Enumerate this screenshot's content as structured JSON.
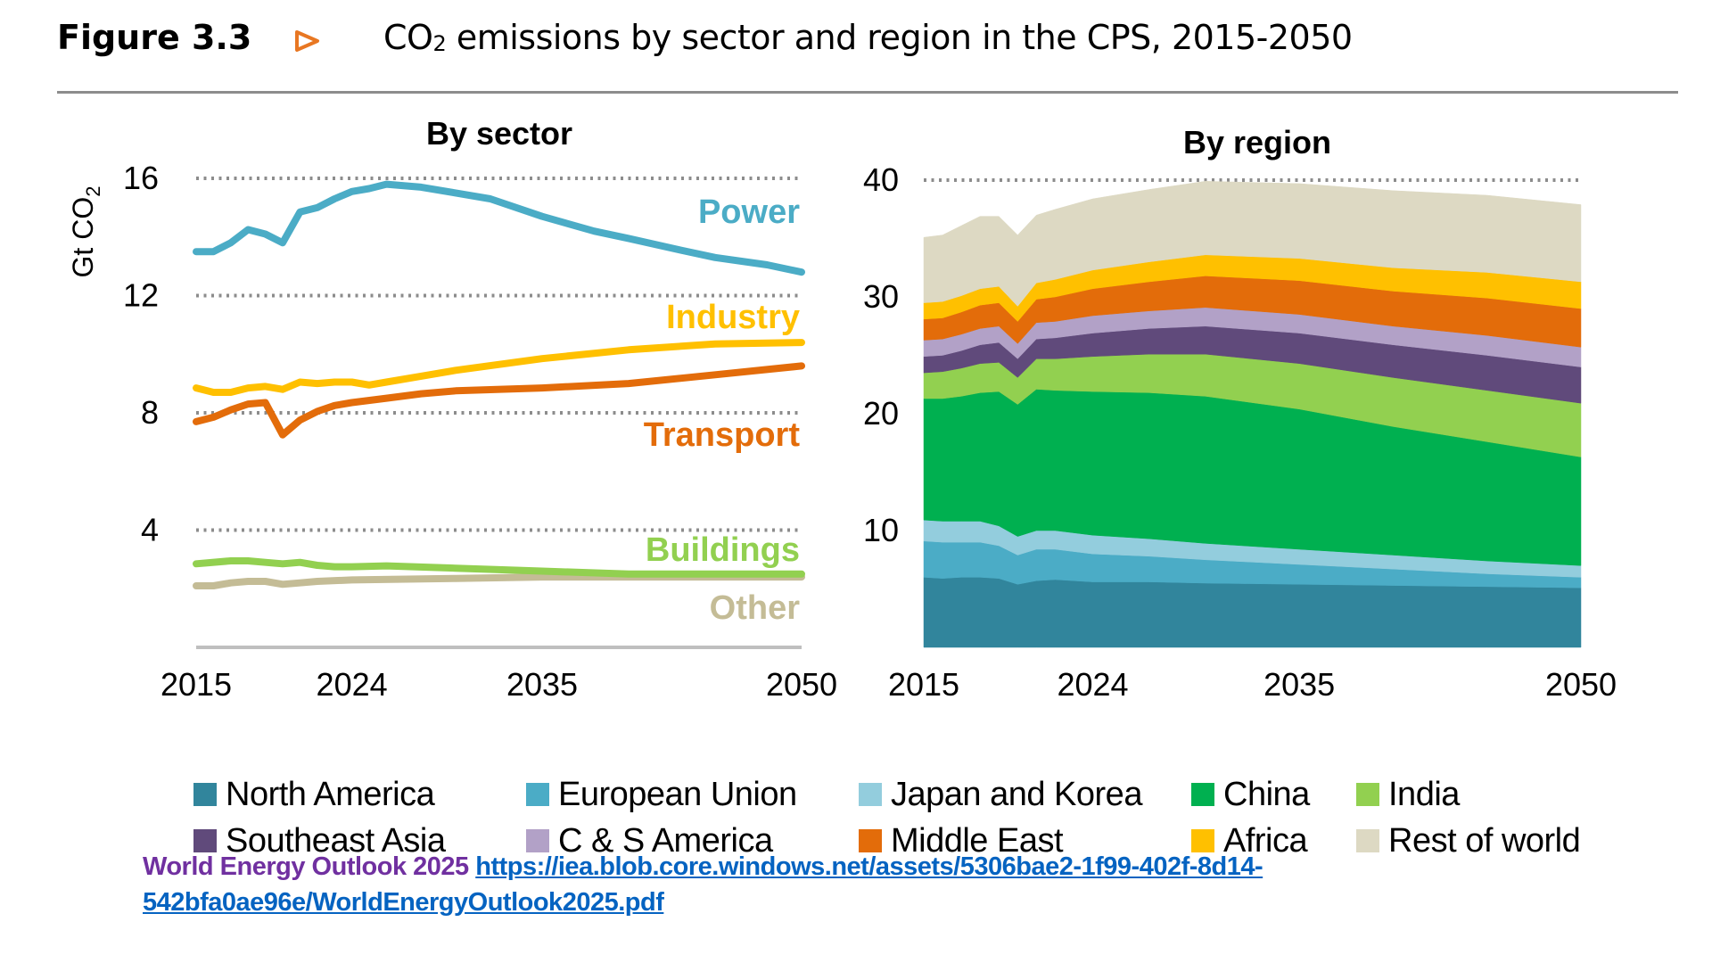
{
  "header": {
    "figure_number": "Figure 3.3",
    "arrow_icon": "right-triangle-icon",
    "title_prefix": "CO",
    "title_subscript": "2",
    "title_rest": " emissions by sector and region in the CPS, 2015-2050",
    "accent_color": "#e87722"
  },
  "footer": {
    "source_label": "World Energy Outlook 2025",
    "link_line1": "https://iea.blob.core.windows.net/assets/5306bae2-1f99-402f-8d14-",
    "link_line2": "542bfa0ae96e/WorldEnergyOutlook2025.pdf"
  },
  "chart_data": [
    {
      "type": "line",
      "title": "By sector",
      "ylabel": "Gt CO2",
      "xlabel": "",
      "xlim": [
        2015,
        2050
      ],
      "ylim": [
        0,
        16
      ],
      "yticks": [
        4,
        8,
        12,
        16
      ],
      "xticks": [
        2015,
        2024,
        2035,
        2050
      ],
      "grid": "horizontal-dotted",
      "legend": "inline-right",
      "series": [
        {
          "name": "Power",
          "color": "#4bacc6",
          "x": [
            2015,
            2016,
            2017,
            2018,
            2019,
            2020,
            2021,
            2022,
            2023,
            2024,
            2025,
            2026,
            2028,
            2030,
            2032,
            2035,
            2038,
            2040,
            2043,
            2045,
            2048,
            2050
          ],
          "y": [
            13.5,
            13.5,
            13.8,
            14.25,
            14.1,
            13.8,
            14.85,
            15.0,
            15.3,
            15.55,
            15.65,
            15.8,
            15.7,
            15.5,
            15.3,
            14.7,
            14.2,
            13.95,
            13.55,
            13.3,
            13.05,
            12.8
          ]
        },
        {
          "name": "Industry",
          "color": "#ffc000",
          "x": [
            2015,
            2016,
            2017,
            2018,
            2019,
            2020,
            2021,
            2022,
            2023,
            2024,
            2025,
            2026,
            2028,
            2030,
            2035,
            2040,
            2045,
            2050
          ],
          "y": [
            8.85,
            8.7,
            8.7,
            8.85,
            8.9,
            8.8,
            9.05,
            9.0,
            9.05,
            9.05,
            8.95,
            9.05,
            9.25,
            9.45,
            9.85,
            10.15,
            10.35,
            10.4
          ]
        },
        {
          "name": "Transport",
          "color": "#e36c0a",
          "x": [
            2015,
            2016,
            2017,
            2018,
            2019,
            2020,
            2021,
            2022,
            2023,
            2024,
            2026,
            2028,
            2030,
            2035,
            2040,
            2045,
            2050
          ],
          "y": [
            7.7,
            7.85,
            8.1,
            8.3,
            8.35,
            7.25,
            7.75,
            8.05,
            8.25,
            8.35,
            8.5,
            8.65,
            8.75,
            8.85,
            9.0,
            9.3,
            9.6
          ]
        },
        {
          "name": "Buildings",
          "color": "#92d050",
          "x": [
            2015,
            2017,
            2018,
            2019,
            2020,
            2021,
            2022,
            2023,
            2024,
            2026,
            2030,
            2035,
            2040,
            2050
          ],
          "y": [
            2.85,
            2.95,
            2.95,
            2.9,
            2.85,
            2.9,
            2.8,
            2.75,
            2.75,
            2.78,
            2.7,
            2.6,
            2.5,
            2.5
          ]
        },
        {
          "name": "Other",
          "color": "#c4bc96",
          "x": [
            2015,
            2016,
            2017,
            2018,
            2019,
            2020,
            2021,
            2022,
            2024,
            2030,
            2035,
            2050
          ],
          "y": [
            2.1,
            2.1,
            2.2,
            2.25,
            2.25,
            2.15,
            2.2,
            2.25,
            2.3,
            2.35,
            2.4,
            2.4
          ]
        }
      ]
    },
    {
      "type": "area",
      "stacked": true,
      "title": "By region",
      "ylabel": "Gt CO2",
      "xlabel": "",
      "xlim": [
        2015,
        2050
      ],
      "ylim": [
        0,
        40
      ],
      "yticks": [
        10,
        20,
        30,
        40
      ],
      "xticks": [
        2015,
        2024,
        2035,
        2050
      ],
      "grid": "horizontal-dotted",
      "legend": "bottom",
      "x": [
        2015,
        2016,
        2017,
        2018,
        2019,
        2020,
        2021,
        2022,
        2024,
        2027,
        2030,
        2035,
        2040,
        2045,
        2050
      ],
      "series": [
        {
          "name": "North America",
          "color": "#31859c",
          "values": [
            6.0,
            5.9,
            6.0,
            6.0,
            5.9,
            5.4,
            5.7,
            5.8,
            5.6,
            5.6,
            5.5,
            5.4,
            5.3,
            5.2,
            5.1
          ]
        },
        {
          "name": "European Union",
          "color": "#4bacc6",
          "values": [
            3.1,
            3.1,
            3.0,
            3.0,
            2.8,
            2.5,
            2.7,
            2.6,
            2.4,
            2.2,
            2.0,
            1.7,
            1.4,
            1.1,
            0.9
          ]
        },
        {
          "name": "Japan and Korea",
          "color": "#93cddd",
          "values": [
            1.8,
            1.8,
            1.8,
            1.8,
            1.7,
            1.6,
            1.6,
            1.6,
            1.6,
            1.5,
            1.4,
            1.3,
            1.2,
            1.1,
            1.0
          ]
        },
        {
          "name": "China",
          "color": "#00b050",
          "values": [
            10.4,
            10.5,
            10.7,
            11.0,
            11.5,
            11.3,
            12.1,
            12.0,
            12.3,
            12.5,
            12.6,
            12.0,
            11.0,
            10.2,
            9.3
          ]
        },
        {
          "name": "India",
          "color": "#92d050",
          "values": [
            2.2,
            2.3,
            2.4,
            2.5,
            2.5,
            2.3,
            2.6,
            2.7,
            3.0,
            3.3,
            3.6,
            3.9,
            4.2,
            4.4,
            4.6
          ]
        },
        {
          "name": "Southeast Asia",
          "color": "#604a7b",
          "values": [
            1.4,
            1.4,
            1.5,
            1.6,
            1.7,
            1.6,
            1.7,
            1.8,
            2.0,
            2.2,
            2.4,
            2.6,
            2.8,
            3.0,
            3.1
          ]
        },
        {
          "name": "C & S America",
          "color": "#b2a1c7",
          "values": [
            1.4,
            1.4,
            1.4,
            1.4,
            1.4,
            1.3,
            1.4,
            1.4,
            1.5,
            1.5,
            1.6,
            1.6,
            1.6,
            1.7,
            1.7
          ]
        },
        {
          "name": "Middle East",
          "color": "#e36c0a",
          "values": [
            1.8,
            1.8,
            1.9,
            2.0,
            2.0,
            1.9,
            2.0,
            2.1,
            2.3,
            2.5,
            2.7,
            2.9,
            3.0,
            3.2,
            3.3
          ]
        },
        {
          "name": "Africa",
          "color": "#ffc000",
          "values": [
            1.4,
            1.4,
            1.4,
            1.4,
            1.4,
            1.3,
            1.4,
            1.5,
            1.6,
            1.7,
            1.8,
            1.9,
            2.0,
            2.2,
            2.3
          ]
        },
        {
          "name": "Rest of world",
          "color": "#ddd9c3",
          "values": [
            5.6,
            5.7,
            6.0,
            6.2,
            6.0,
            6.1,
            5.8,
            6.0,
            6.1,
            6.2,
            6.3,
            6.4,
            6.6,
            6.6,
            6.6
          ]
        }
      ]
    }
  ]
}
